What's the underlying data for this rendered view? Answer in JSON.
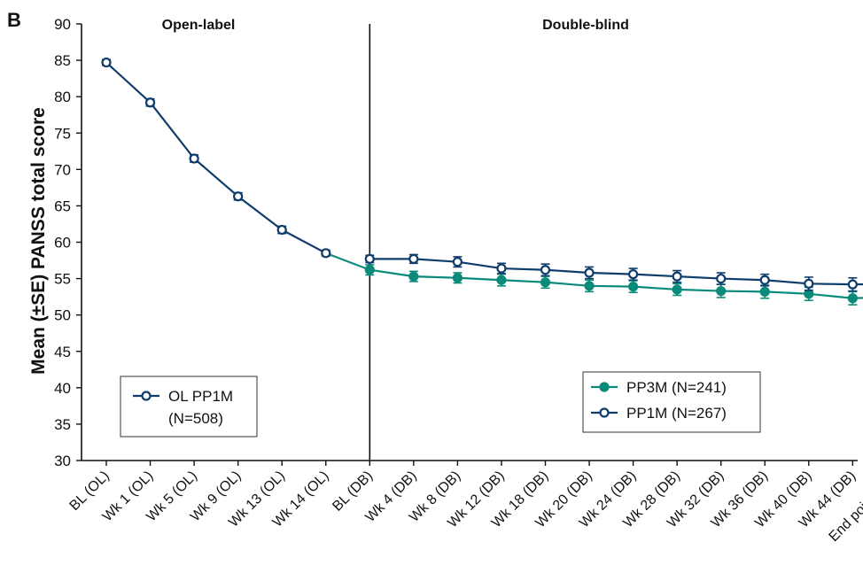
{
  "colors": {
    "pp3m": "#0b8a7a",
    "pp1m": "#0e3d6b",
    "axis": "#111111"
  },
  "panel_letter": "B",
  "sections": {
    "open_label": "Open-label",
    "double_blind": "Double-blind"
  },
  "legend_ol": {
    "label": "OL PP1M",
    "n": "(N=508)"
  },
  "legend_db": {
    "pp3m": "PP3M (N=241)",
    "pp1m": "PP1M (N=267)"
  },
  "chart_data": {
    "type": "line",
    "ylabel": "Mean (±SE) PANSS total score",
    "xlabel": "",
    "ylim": [
      30,
      90
    ],
    "yticks": [
      30,
      35,
      40,
      45,
      50,
      55,
      60,
      65,
      70,
      75,
      80,
      85,
      90
    ],
    "categories": [
      "BL (OL)",
      "Wk 1 (OL)",
      "Wk 5 (OL)",
      "Wk 9 (OL)",
      "Wk 13 (OL)",
      "Wk 14 (OL)",
      "BL (DB)",
      "Wk 4 (DB)",
      "Wk 8 (DB)",
      "Wk 12 (DB)",
      "Wk 18 (DB)",
      "Wk 20 (DB)",
      "Wk 24 (DB)",
      "Wk 28 (DB)",
      "Wk 32 (DB)",
      "Wk 36 (DB)",
      "Wk 40 (DB)",
      "Wk 44 (DB)",
      "End point (DB)"
    ],
    "divider_after_category": "BL (DB)",
    "series": [
      {
        "name": "OL PP1M (N=508)",
        "marker": "open",
        "x": [
          "BL (OL)",
          "Wk 1 (OL)",
          "Wk 5 (OL)",
          "Wk 9 (OL)",
          "Wk 13 (OL)",
          "Wk 14 (OL)"
        ],
        "values": [
          84.7,
          79.2,
          71.5,
          66.3,
          61.7,
          58.5
        ],
        "se": [
          0.4,
          0.5,
          0.5,
          0.5,
          0.5,
          0.4
        ]
      },
      {
        "name": "PP3M (N=241)",
        "marker": "filled",
        "x": [
          "Wk 14 (OL)",
          "BL (DB)",
          "Wk 4 (DB)",
          "Wk 8 (DB)",
          "Wk 12 (DB)",
          "Wk 18 (DB)",
          "Wk 20 (DB)",
          "Wk 24 (DB)",
          "Wk 28 (DB)",
          "Wk 32 (DB)",
          "Wk 36 (DB)",
          "Wk 40 (DB)",
          "Wk 44 (DB)",
          "End point (DB)"
        ],
        "values": [
          58.5,
          56.2,
          55.3,
          55.1,
          54.8,
          54.5,
          54.0,
          53.9,
          53.5,
          53.3,
          53.2,
          52.9,
          52.3,
          52.5
        ],
        "se": [
          0,
          0.7,
          0.7,
          0.7,
          0.8,
          0.8,
          0.8,
          0.8,
          0.8,
          0.9,
          0.9,
          0.9,
          0.9,
          0.9
        ]
      },
      {
        "name": "PP1M (N=267)",
        "marker": "open",
        "x": [
          "BL (DB)",
          "Wk 4 (DB)",
          "Wk 8 (DB)",
          "Wk 12 (DB)",
          "Wk 18 (DB)",
          "Wk 20 (DB)",
          "Wk 24 (DB)",
          "Wk 28 (DB)",
          "Wk 32 (DB)",
          "Wk 36 (DB)",
          "Wk 40 (DB)",
          "Wk 44 (DB)",
          "End point (DB)"
        ],
        "values": [
          57.7,
          57.7,
          57.3,
          56.4,
          56.2,
          55.8,
          55.6,
          55.3,
          55.0,
          54.8,
          54.3,
          54.2,
          54.3
        ],
        "se": [
          0.5,
          0.6,
          0.7,
          0.7,
          0.8,
          0.8,
          0.8,
          0.8,
          0.8,
          0.8,
          0.9,
          0.9,
          0.9
        ]
      }
    ]
  }
}
